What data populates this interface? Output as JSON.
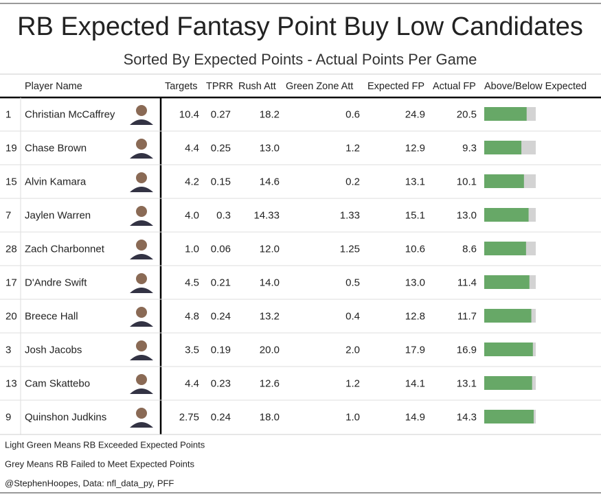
{
  "title": "RB Expected Fantasy Point Buy Low Candidates",
  "subtitle": "Sorted By Expected Points - Actual Points Per Game",
  "table": {
    "columns": [
      "Player Name",
      "Targets",
      "TPRR",
      "Rush Att",
      "Green Zone Att",
      "Expected FP",
      "Actual FP",
      "Above/Below Expected"
    ],
    "rows": [
      [
        "1",
        "Christian McCaffrey",
        "10.4",
        "0.27",
        "18.2",
        "0.6",
        "24.9",
        "20.5"
      ],
      [
        "19",
        "Chase Brown",
        "4.4",
        "0.25",
        "13.0",
        "1.2",
        "12.9",
        "9.3"
      ],
      [
        "15",
        "Alvin Kamara",
        "4.2",
        "0.15",
        "14.6",
        "0.2",
        "13.1",
        "10.1"
      ],
      [
        "7",
        "Jaylen Warren",
        "4.0",
        "0.3",
        "14.33",
        "1.33",
        "15.1",
        "13.0"
      ],
      [
        "28",
        "Zach Charbonnet",
        "1.0",
        "0.06",
        "12.0",
        "1.25",
        "10.6",
        "8.6"
      ],
      [
        "17",
        "D'Andre Swift",
        "4.5",
        "0.21",
        "14.0",
        "0.5",
        "13.0",
        "11.4"
      ],
      [
        "20",
        "Breece Hall",
        "4.8",
        "0.24",
        "13.2",
        "0.4",
        "12.8",
        "11.7"
      ],
      [
        "3",
        "Josh Jacobs",
        "3.5",
        "0.19",
        "20.0",
        "2.0",
        "17.9",
        "16.9"
      ],
      [
        "13",
        "Cam Skattebo",
        "4.4",
        "0.23",
        "12.6",
        "1.2",
        "14.1",
        "13.1"
      ],
      [
        "9",
        "Quinshon Judkins",
        "2.75",
        "0.24",
        "18.0",
        "1.0",
        "14.9",
        "14.3"
      ]
    ]
  },
  "notes": [
    "Light Green Means RB Exceeded Expected Points",
    "Grey Means RB Failed to Meet Expected Points",
    "@StephenHoopes, Data: nfl_data_py, PFF"
  ]
}
